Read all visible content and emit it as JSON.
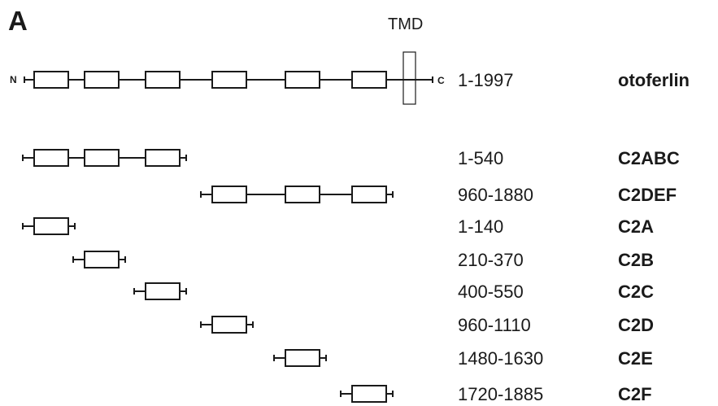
{
  "panel_label": "A",
  "tmd_label": "TMD",
  "n_terminus": "N",
  "c_terminus": "C",
  "constructs": [
    {
      "range": "1-1997",
      "name": "otoferlin",
      "domains": [
        "C2A",
        "C2B",
        "C2C",
        "C2D",
        "C2E",
        "C2F"
      ],
      "has_tmd": true
    },
    {
      "range": "1-540",
      "name": "C2ABC",
      "domains": [
        "C2A",
        "C2B",
        "C2C"
      ]
    },
    {
      "range": "960-1880",
      "name": "C2DEF",
      "domains": [
        "C2D",
        "C2E",
        "C2F"
      ]
    },
    {
      "range": "1-140",
      "name": "C2A",
      "domains": [
        "C2A"
      ]
    },
    {
      "range": "210-370",
      "name": "C2B",
      "domains": [
        "C2B"
      ]
    },
    {
      "range": "400-550",
      "name": "C2C",
      "domains": [
        "C2C"
      ]
    },
    {
      "range": "960-1110",
      "name": "C2D",
      "domains": [
        "C2D"
      ]
    },
    {
      "range": "1480-1630",
      "name": "C2E",
      "domains": [
        "C2E"
      ]
    },
    {
      "range": "1720-1885",
      "name": "C2F",
      "domains": [
        "C2F"
      ]
    }
  ],
  "colors": {
    "ink": "#1a1a1a",
    "background": "#ffffff"
  }
}
